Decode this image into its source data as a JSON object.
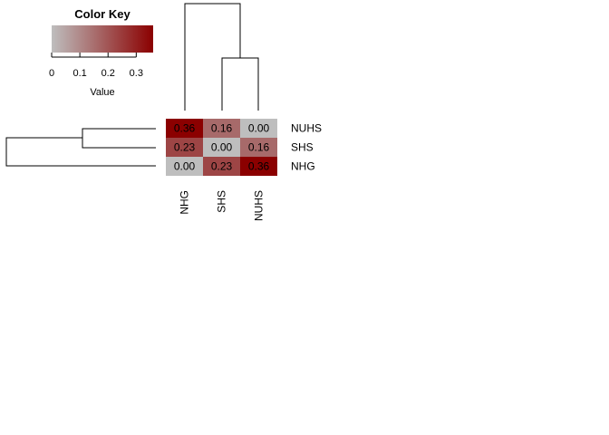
{
  "colors": {
    "low": "#bebebe",
    "high": "#8b0000"
  },
  "key": {
    "title": "Color Key",
    "xlabel": "Value",
    "ticks": [
      "0",
      "0.1",
      "0.2",
      "0.3"
    ],
    "tick_values": [
      0,
      0.1,
      0.2,
      0.3
    ],
    "range": [
      0,
      0.36
    ]
  },
  "chart_data": {
    "type": "heatmap",
    "rows": [
      "NUHS",
      "SHS",
      "NHG"
    ],
    "columns": [
      "NHG",
      "SHS",
      "NUHS"
    ],
    "values": [
      [
        0.36,
        0.16,
        0.0
      ],
      [
        0.23,
        0.0,
        0.16
      ],
      [
        0.0,
        0.23,
        0.36
      ]
    ],
    "cell_labels": [
      [
        "0.36",
        "0.16",
        "0.00"
      ],
      [
        "0.23",
        "0.00",
        "0.16"
      ],
      [
        "0.00",
        "0.23",
        "0.36"
      ]
    ],
    "row_dendrogram": true,
    "column_dendrogram": true,
    "legend": "top-left"
  }
}
